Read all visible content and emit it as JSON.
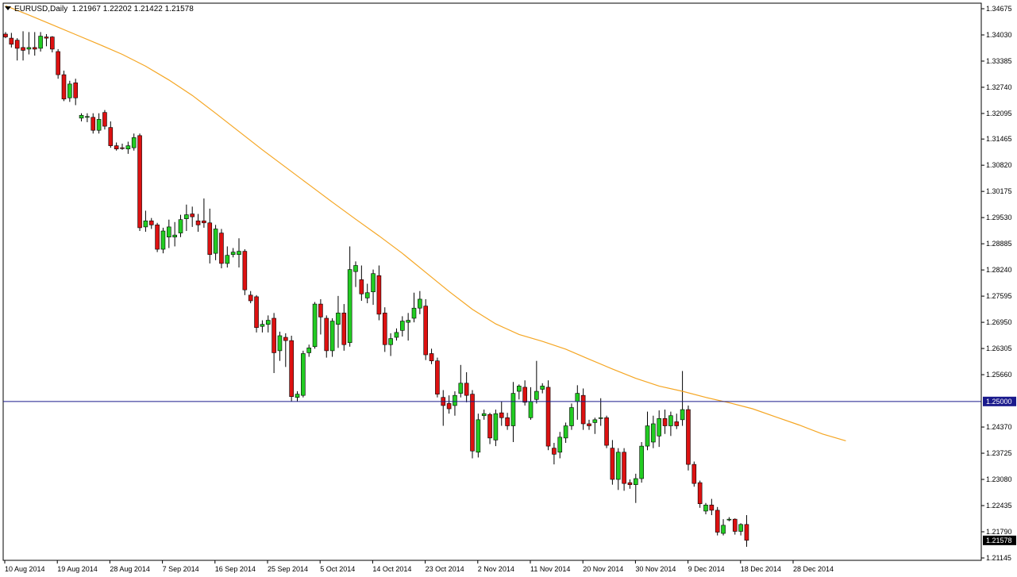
{
  "header": {
    "symbol": "EURUSD,Daily",
    "open": "1.21967",
    "high": "1.22202",
    "low": "1.21422",
    "close": "1.21578"
  },
  "colors": {
    "bull": "#22cc22",
    "bear": "#dd1111",
    "wick": "#000000",
    "ma": "#f5a623",
    "hline": "#1a1a8c",
    "axis": "#000000",
    "label_bg": "#1a1a8c",
    "label_fg": "#ffffff"
  },
  "chart_data": {
    "type": "candlestick",
    "title": "EURUSD,Daily",
    "y_ticks": [
      "1.34675",
      "1.34030",
      "1.33385",
      "1.32740",
      "1.32095",
      "1.31465",
      "1.30820",
      "1.30175",
      "1.29530",
      "1.28885",
      "1.28240",
      "1.27595",
      "1.26950",
      "1.26305",
      "1.25660",
      "1.25000",
      "1.24370",
      "1.23725",
      "1.23080",
      "1.22435",
      "1.21790",
      "1.21578",
      "1.21145"
    ],
    "ylim": [
      1.21145,
      1.34675
    ],
    "x_ticks": [
      "10 Aug 2014",
      "19 Aug 2014",
      "28 Aug 2014",
      "7 Sep 2014",
      "16 Sep 2014",
      "25 Sep 2014",
      "5 Oct 2014",
      "14 Oct 2014",
      "23 Oct 2014",
      "2 Nov 2014",
      "11 Nov 2014",
      "20 Nov 2014",
      "30 Nov 2014",
      "9 Dec 2014",
      "18 Dec 2014",
      "28 Dec 2014"
    ],
    "horizontal_line": {
      "value": 1.25,
      "label": "1.25000"
    },
    "current_price": {
      "value": 1.21578,
      "label": "1.21578"
    },
    "moving_average": [
      1.3475,
      1.3452,
      1.3428,
      1.3404,
      1.338,
      1.3355,
      1.3326,
      1.3292,
      1.3254,
      1.321,
      1.3165,
      1.312,
      1.3077,
      1.3034,
      1.2991,
      1.2949,
      1.2908,
      1.2865,
      1.2818,
      1.2771,
      1.2727,
      1.2691,
      1.2665,
      1.2648,
      1.2629,
      1.2604,
      1.258,
      1.2557,
      1.2538,
      1.2525,
      1.251,
      1.2497,
      1.2482,
      1.2462,
      1.2442,
      1.242,
      1.2403
    ],
    "candles": [
      {
        "o": 1.3405,
        "h": 1.341,
        "l": 1.3395,
        "c": 1.3398
      },
      {
        "o": 1.3395,
        "h": 1.3408,
        "l": 1.3372,
        "c": 1.338
      },
      {
        "o": 1.339,
        "h": 1.3395,
        "l": 1.334,
        "c": 1.337
      },
      {
        "o": 1.3372,
        "h": 1.3412,
        "l": 1.334,
        "c": 1.3365
      },
      {
        "o": 1.3368,
        "h": 1.341,
        "l": 1.3355,
        "c": 1.3372
      },
      {
        "o": 1.3372,
        "h": 1.341,
        "l": 1.3352,
        "c": 1.3368
      },
      {
        "o": 1.337,
        "h": 1.341,
        "l": 1.3362,
        "c": 1.34
      },
      {
        "o": 1.3398,
        "h": 1.3405,
        "l": 1.3375,
        "c": 1.3395
      },
      {
        "o": 1.3398,
        "h": 1.34,
        "l": 1.336,
        "c": 1.3368
      },
      {
        "o": 1.3362,
        "h": 1.3368,
        "l": 1.3295,
        "c": 1.3305
      },
      {
        "o": 1.3305,
        "h": 1.3315,
        "l": 1.324,
        "c": 1.3245
      },
      {
        "o": 1.3248,
        "h": 1.329,
        "l": 1.3238,
        "c": 1.3282
      },
      {
        "o": 1.3285,
        "h": 1.3295,
        "l": 1.323,
        "c": 1.3248
      },
      {
        "o": 1.3198,
        "h": 1.321,
        "l": 1.319,
        "c": 1.3205
      },
      {
        "o": 1.32,
        "h": 1.321,
        "l": 1.3188,
        "c": 1.3202
      },
      {
        "o": 1.32,
        "h": 1.321,
        "l": 1.316,
        "c": 1.3168
      },
      {
        "o": 1.3168,
        "h": 1.321,
        "l": 1.316,
        "c": 1.3195
      },
      {
        "o": 1.3212,
        "h": 1.3218,
        "l": 1.317,
        "c": 1.3178
      },
      {
        "o": 1.3175,
        "h": 1.319,
        "l": 1.3125,
        "c": 1.313
      },
      {
        "o": 1.313,
        "h": 1.3138,
        "l": 1.3118,
        "c": 1.3122
      },
      {
        "o": 1.3125,
        "h": 1.3135,
        "l": 1.312,
        "c": 1.3123
      },
      {
        "o": 1.3122,
        "h": 1.314,
        "l": 1.311,
        "c": 1.313
      },
      {
        "o": 1.3125,
        "h": 1.316,
        "l": 1.3118,
        "c": 1.315
      },
      {
        "o": 1.3155,
        "h": 1.316,
        "l": 1.292,
        "c": 1.2928
      },
      {
        "o": 1.293,
        "h": 1.297,
        "l": 1.2918,
        "c": 1.2945
      },
      {
        "o": 1.2945,
        "h": 1.2952,
        "l": 1.2925,
        "c": 1.2935
      },
      {
        "o": 1.2935,
        "h": 1.294,
        "l": 1.2868,
        "c": 1.2875
      },
      {
        "o": 1.2875,
        "h": 1.2928,
        "l": 1.2865,
        "c": 1.292
      },
      {
        "o": 1.2905,
        "h": 1.2948,
        "l": 1.2878,
        "c": 1.293
      },
      {
        "o": 1.2905,
        "h": 1.2942,
        "l": 1.2882,
        "c": 1.291
      },
      {
        "o": 1.2915,
        "h": 1.296,
        "l": 1.2905,
        "c": 1.2948
      },
      {
        "o": 1.295,
        "h": 1.2985,
        "l": 1.292,
        "c": 1.296
      },
      {
        "o": 1.2962,
        "h": 1.298,
        "l": 1.293,
        "c": 1.2955
      },
      {
        "o": 1.2945,
        "h": 1.2962,
        "l": 1.2918,
        "c": 1.2935
      },
      {
        "o": 1.2945,
        "h": 1.3,
        "l": 1.2928,
        "c": 1.294
      },
      {
        "o": 1.294,
        "h": 1.2975,
        "l": 1.284,
        "c": 1.2862
      },
      {
        "o": 1.2865,
        "h": 1.2935,
        "l": 1.2848,
        "c": 1.2925
      },
      {
        "o": 1.2915,
        "h": 1.2925,
        "l": 1.2828,
        "c": 1.284
      },
      {
        "o": 1.284,
        "h": 1.2882,
        "l": 1.283,
        "c": 1.286
      },
      {
        "o": 1.2862,
        "h": 1.2878,
        "l": 1.2855,
        "c": 1.2868
      },
      {
        "o": 1.2862,
        "h": 1.2902,
        "l": 1.283,
        "c": 1.287
      },
      {
        "o": 1.287,
        "h": 1.2875,
        "l": 1.2762,
        "c": 1.2775
      },
      {
        "o": 1.2762,
        "h": 1.2772,
        "l": 1.2742,
        "c": 1.2748
      },
      {
        "o": 1.2758,
        "h": 1.2762,
        "l": 1.267,
        "c": 1.2682
      },
      {
        "o": 1.2685,
        "h": 1.27,
        "l": 1.267,
        "c": 1.269
      },
      {
        "o": 1.269,
        "h": 1.2712,
        "l": 1.267,
        "c": 1.27
      },
      {
        "o": 1.2705,
        "h": 1.2718,
        "l": 1.257,
        "c": 1.262
      },
      {
        "o": 1.2625,
        "h": 1.2672,
        "l": 1.26,
        "c": 1.2662
      },
      {
        "o": 1.2658,
        "h": 1.2668,
        "l": 1.2585,
        "c": 1.265
      },
      {
        "o": 1.265,
        "h": 1.2662,
        "l": 1.25,
        "c": 1.2512
      },
      {
        "o": 1.251,
        "h": 1.2525,
        "l": 1.25,
        "c": 1.2518
      },
      {
        "o": 1.2515,
        "h": 1.2625,
        "l": 1.251,
        "c": 1.2618
      },
      {
        "o": 1.262,
        "h": 1.264,
        "l": 1.261,
        "c": 1.2632
      },
      {
        "o": 1.2635,
        "h": 1.2745,
        "l": 1.263,
        "c": 1.274
      },
      {
        "o": 1.274,
        "h": 1.2752,
        "l": 1.2665,
        "c": 1.2708
      },
      {
        "o": 1.2705,
        "h": 1.2712,
        "l": 1.2608,
        "c": 1.2625
      },
      {
        "o": 1.2625,
        "h": 1.2705,
        "l": 1.261,
        "c": 1.2698
      },
      {
        "o": 1.269,
        "h": 1.276,
        "l": 1.2632,
        "c": 1.2718
      },
      {
        "o": 1.2718,
        "h": 1.274,
        "l": 1.2625,
        "c": 1.264
      },
      {
        "o": 1.2645,
        "h": 1.2882,
        "l": 1.2635,
        "c": 1.2825
      },
      {
        "o": 1.282,
        "h": 1.2845,
        "l": 1.2782,
        "c": 1.2835
      },
      {
        "o": 1.28,
        "h": 1.2835,
        "l": 1.2748,
        "c": 1.2765
      },
      {
        "o": 1.2755,
        "h": 1.279,
        "l": 1.2742,
        "c": 1.2768
      },
      {
        "o": 1.277,
        "h": 1.2825,
        "l": 1.2738,
        "c": 1.2815
      },
      {
        "o": 1.281,
        "h": 1.2835,
        "l": 1.27,
        "c": 1.2715
      },
      {
        "o": 1.2718,
        "h": 1.2732,
        "l": 1.2622,
        "c": 1.264
      },
      {
        "o": 1.264,
        "h": 1.2668,
        "l": 1.2612,
        "c": 1.2655
      },
      {
        "o": 1.2658,
        "h": 1.268,
        "l": 1.265,
        "c": 1.267
      },
      {
        "o": 1.2675,
        "h": 1.271,
        "l": 1.266,
        "c": 1.2698
      },
      {
        "o": 1.2695,
        "h": 1.2718,
        "l": 1.265,
        "c": 1.27
      },
      {
        "o": 1.2705,
        "h": 1.2768,
        "l": 1.2695,
        "c": 1.273
      },
      {
        "o": 1.273,
        "h": 1.2772,
        "l": 1.2715,
        "c": 1.2752
      },
      {
        "o": 1.2735,
        "h": 1.2752,
        "l": 1.2602,
        "c": 1.2615
      },
      {
        "o": 1.2618,
        "h": 1.263,
        "l": 1.2592,
        "c": 1.26
      },
      {
        "o": 1.26,
        "h": 1.2608,
        "l": 1.251,
        "c": 1.2518
      },
      {
        "o": 1.251,
        "h": 1.2528,
        "l": 1.244,
        "c": 1.249
      },
      {
        "o": 1.2495,
        "h": 1.2515,
        "l": 1.247,
        "c": 1.2482
      },
      {
        "o": 1.249,
        "h": 1.2525,
        "l": 1.2465,
        "c": 1.2515
      },
      {
        "o": 1.252,
        "h": 1.259,
        "l": 1.251,
        "c": 1.2545
      },
      {
        "o": 1.2545,
        "h": 1.2572,
        "l": 1.2498,
        "c": 1.2515
      },
      {
        "o": 1.2518,
        "h": 1.2528,
        "l": 1.236,
        "c": 1.2378
      },
      {
        "o": 1.2375,
        "h": 1.247,
        "l": 1.2362,
        "c": 1.2455
      },
      {
        "o": 1.2465,
        "h": 1.248,
        "l": 1.2455,
        "c": 1.247
      },
      {
        "o": 1.2468,
        "h": 1.2472,
        "l": 1.2395,
        "c": 1.241
      },
      {
        "o": 1.2405,
        "h": 1.248,
        "l": 1.239,
        "c": 1.247
      },
      {
        "o": 1.2472,
        "h": 1.25,
        "l": 1.244,
        "c": 1.246
      },
      {
        "o": 1.246,
        "h": 1.2472,
        "l": 1.243,
        "c": 1.244
      },
      {
        "o": 1.244,
        "h": 1.2548,
        "l": 1.24,
        "c": 1.252
      },
      {
        "o": 1.2525,
        "h": 1.2542,
        "l": 1.2505,
        "c": 1.2538
      },
      {
        "o": 1.2535,
        "h": 1.2552,
        "l": 1.249,
        "c": 1.2498
      },
      {
        "o": 1.246,
        "h": 1.2535,
        "l": 1.2455,
        "c": 1.25
      },
      {
        "o": 1.2505,
        "h": 1.26,
        "l": 1.2495,
        "c": 1.2525
      },
      {
        "o": 1.253,
        "h": 1.2545,
        "l": 1.252,
        "c": 1.2538
      },
      {
        "o": 1.2535,
        "h": 1.2552,
        "l": 1.238,
        "c": 1.239
      },
      {
        "o": 1.2385,
        "h": 1.2398,
        "l": 1.2345,
        "c": 1.237
      },
      {
        "o": 1.2375,
        "h": 1.2425,
        "l": 1.236,
        "c": 1.2412
      },
      {
        "o": 1.241,
        "h": 1.2448,
        "l": 1.2398,
        "c": 1.244
      },
      {
        "o": 1.244,
        "h": 1.2495,
        "l": 1.243,
        "c": 1.2485
      },
      {
        "o": 1.25,
        "h": 1.254,
        "l": 1.2455,
        "c": 1.252
      },
      {
        "o": 1.2515,
        "h": 1.2532,
        "l": 1.243,
        "c": 1.2445
      },
      {
        "o": 1.2445,
        "h": 1.2455,
        "l": 1.243,
        "c": 1.244
      },
      {
        "o": 1.2448,
        "h": 1.246,
        "l": 1.242,
        "c": 1.2455
      },
      {
        "o": 1.2458,
        "h": 1.2508,
        "l": 1.244,
        "c": 1.246
      },
      {
        "o": 1.246,
        "h": 1.2465,
        "l": 1.2385,
        "c": 1.2392
      },
      {
        "o": 1.2385,
        "h": 1.2405,
        "l": 1.2295,
        "c": 1.2308
      },
      {
        "o": 1.2308,
        "h": 1.2385,
        "l": 1.2282,
        "c": 1.2375
      },
      {
        "o": 1.2375,
        "h": 1.2385,
        "l": 1.228,
        "c": 1.2298
      },
      {
        "o": 1.23,
        "h": 1.2308,
        "l": 1.2285,
        "c": 1.2295
      },
      {
        "o": 1.2295,
        "h": 1.2322,
        "l": 1.225,
        "c": 1.231
      },
      {
        "o": 1.231,
        "h": 1.24,
        "l": 1.23,
        "c": 1.239
      },
      {
        "o": 1.239,
        "h": 1.2475,
        "l": 1.238,
        "c": 1.244
      },
      {
        "o": 1.24,
        "h": 1.2465,
        "l": 1.2385,
        "c": 1.2445
      },
      {
        "o": 1.2415,
        "h": 1.2478,
        "l": 1.2388,
        "c": 1.2458
      },
      {
        "o": 1.2458,
        "h": 1.248,
        "l": 1.242,
        "c": 1.244
      },
      {
        "o": 1.244,
        "h": 1.2475,
        "l": 1.2415,
        "c": 1.2465
      },
      {
        "o": 1.245,
        "h": 1.247,
        "l": 1.2432,
        "c": 1.244
      },
      {
        "o": 1.2455,
        "h": 1.2575,
        "l": 1.244,
        "c": 1.248
      },
      {
        "o": 1.248,
        "h": 1.249,
        "l": 1.233,
        "c": 1.2345
      },
      {
        "o": 1.2345,
        "h": 1.2352,
        "l": 1.229,
        "c": 1.2298
      },
      {
        "o": 1.23,
        "h": 1.2305,
        "l": 1.2238,
        "c": 1.2248
      },
      {
        "o": 1.223,
        "h": 1.225,
        "l": 1.2222,
        "c": 1.2245
      },
      {
        "o": 1.2245,
        "h": 1.226,
        "l": 1.222,
        "c": 1.2232
      },
      {
        "o": 1.2232,
        "h": 1.224,
        "l": 1.217,
        "c": 1.2178
      },
      {
        "o": 1.2175,
        "h": 1.221,
        "l": 1.217,
        "c": 1.2195
      },
      {
        "o": 1.221,
        "h": 1.2215,
        "l": 1.2205,
        "c": 1.221
      },
      {
        "o": 1.221,
        "h": 1.2212,
        "l": 1.2172,
        "c": 1.218
      },
      {
        "o": 1.218,
        "h": 1.22,
        "l": 1.217,
        "c": 1.2197
      },
      {
        "o": 1.2197,
        "h": 1.222,
        "l": 1.2142,
        "c": 1.2158
      }
    ]
  }
}
